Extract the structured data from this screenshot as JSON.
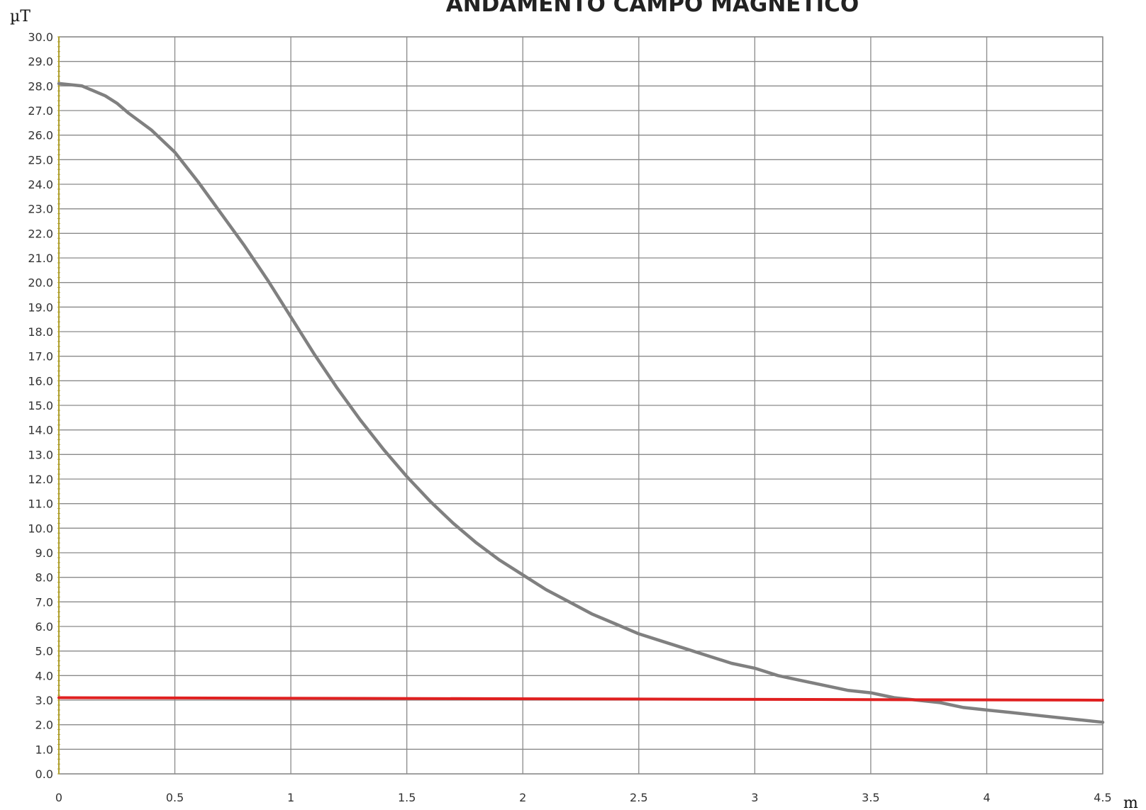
{
  "chart_data": {
    "type": "line",
    "title": "ANDAMENTO CAMPO MAGNETICO",
    "ylabel": "µT",
    "xlabel": "m",
    "xlim": [
      0,
      4.5
    ],
    "ylim": [
      0,
      30
    ],
    "grid": true,
    "x_ticks": [
      "0",
      "0.5",
      "1",
      "1.5",
      "2",
      "2.5",
      "3",
      "3.5",
      "4",
      "4.5"
    ],
    "y_ticks": [
      "0.0",
      "1.0",
      "2.0",
      "3.0",
      "4.0",
      "5.0",
      "6.0",
      "7.0",
      "8.0",
      "9.0",
      "10.0",
      "11.0",
      "12.0",
      "13.0",
      "14.0",
      "15.0",
      "16.0",
      "17.0",
      "18.0",
      "19.0",
      "20.0",
      "21.0",
      "22.0",
      "23.0",
      "24.0",
      "25.0",
      "26.0",
      "27.0",
      "28.0",
      "29.0",
      "30.0"
    ],
    "series": [
      {
        "color": "#808080",
        "x": [
          0,
          0.1,
          0.2,
          0.25,
          0.3,
          0.4,
          0.5,
          0.6,
          0.7,
          0.8,
          0.9,
          1.0,
          1.1,
          1.2,
          1.3,
          1.4,
          1.5,
          1.6,
          1.7,
          1.8,
          1.9,
          2.0,
          2.1,
          2.2,
          2.3,
          2.4,
          2.5,
          2.6,
          2.7,
          2.8,
          2.9,
          3.0,
          3.1,
          3.2,
          3.3,
          3.4,
          3.5,
          3.6,
          3.7,
          3.8,
          3.9,
          4.0,
          4.1,
          4.2,
          4.3,
          4.4,
          4.5
        ],
        "y": [
          28.1,
          28.0,
          27.6,
          27.3,
          26.9,
          26.2,
          25.3,
          24.1,
          22.8,
          21.5,
          20.1,
          18.6,
          17.1,
          15.7,
          14.4,
          13.2,
          12.1,
          11.1,
          10.2,
          9.4,
          8.7,
          8.1,
          7.5,
          7.0,
          6.5,
          6.1,
          5.7,
          5.4,
          5.1,
          4.8,
          4.5,
          4.3,
          4.0,
          3.8,
          3.6,
          3.4,
          3.3,
          3.1,
          3.0,
          2.9,
          2.7,
          2.6,
          2.5,
          2.4,
          2.3,
          2.2,
          2.1
        ]
      },
      {
        "color": "#e02020",
        "x": [
          0,
          4.5
        ],
        "y": [
          3.1,
          3.0
        ]
      }
    ]
  }
}
